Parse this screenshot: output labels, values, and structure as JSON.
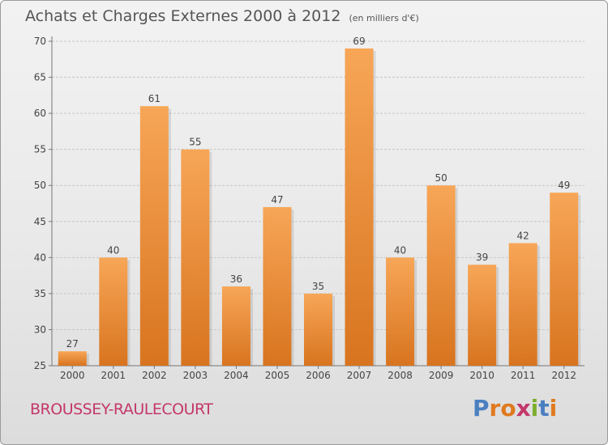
{
  "title": "Achats et Charges Externes 2000 à 2012",
  "subtitle": "(en milliers d'€)",
  "commune": "BROUSSEY-RAULECOURT",
  "logo": {
    "text": "Proxiti",
    "letters": [
      {
        "ch": "P",
        "color": "#4a7fc1"
      },
      {
        "ch": "r",
        "color": "#e07a1f"
      },
      {
        "ch": "o",
        "color": "#e07a1f"
      },
      {
        "ch": "x",
        "color": "#c4376a"
      },
      {
        "ch": "i",
        "color": "#7cae2c"
      },
      {
        "ch": "t",
        "color": "#4a7fc1"
      },
      {
        "ch": "i",
        "color": "#e07a1f"
      }
    ]
  },
  "colors": {
    "bar_top": "#f7a657",
    "bar_bottom": "#d8741f",
    "grid": "#c8c8c8",
    "axis_text": "#444444"
  },
  "chart_data": {
    "type": "bar",
    "categories": [
      "2000",
      "2001",
      "2002",
      "2003",
      "2004",
      "2005",
      "2006",
      "2007",
      "2008",
      "2009",
      "2010",
      "2011",
      "2012"
    ],
    "values": [
      27,
      40,
      61,
      55,
      36,
      47,
      35,
      69,
      40,
      50,
      39,
      42,
      49
    ],
    "ylim": [
      25,
      70
    ],
    "yticks": [
      25,
      30,
      35,
      40,
      45,
      50,
      55,
      60,
      65,
      70
    ],
    "grid": true,
    "data_labels": true
  }
}
